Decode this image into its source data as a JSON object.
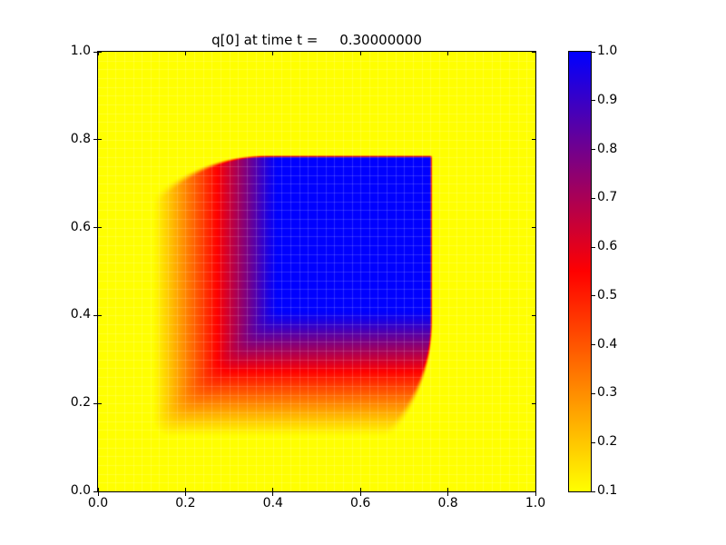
{
  "chart_data": {
    "type": "heatmap",
    "title": "q[0] at time t =     0.30000000",
    "xlabel": "",
    "ylabel": "",
    "xlim": [
      0.0,
      1.0
    ],
    "ylim": [
      0.0,
      1.0
    ],
    "x_ticks": [
      "0.0",
      "0.2",
      "0.4",
      "0.6",
      "0.8",
      "1.0"
    ],
    "y_ticks": [
      "0.0",
      "0.2",
      "0.4",
      "0.6",
      "0.8",
      "1.0"
    ],
    "grid": {
      "divisions": 50,
      "line_color": "rgba(255,255,255,0.16)"
    },
    "spine_color": "#000000",
    "background_color": "#ffffff",
    "colorbar": {
      "position": "right",
      "vmin": 0.1,
      "vmax": 1.0,
      "tick_labels": [
        "1.0",
        "0.9",
        "0.8",
        "0.7",
        "0.6",
        "0.5",
        "0.4",
        "0.3",
        "0.2",
        "0.1"
      ],
      "colormap_name": "yellow-red-blue",
      "colormap_stops": [
        {
          "t": 0.0,
          "color": "#ffff00"
        },
        {
          "t": 0.5,
          "color": "#ff0000"
        },
        {
          "t": 1.0,
          "color": "#0000ff"
        }
      ]
    },
    "field": {
      "description": "Advected square pulse at t=0.3: uniform core q=1.0 (blue) with sharp leading fronts at x=0.762 and y=0.762 (thin red rim), rounded leading corners, and smeared trailing ramps on the left and bottom fading to background q=0.1 (yellow) near x,y=0.125",
      "background_value": 0.1,
      "peak_value": 1.0,
      "ramp_start": 0.125,
      "ramp_width": 0.285,
      "ramp_power": 1.1,
      "smin_k": 0.12,
      "front_pos": 0.762,
      "front_corner_start": 0.388,
      "front_corner_coef": 1.83,
      "front_corner_power": 2.17,
      "front_softness": 0.0035,
      "front_soft_grow": 0.15
    }
  }
}
